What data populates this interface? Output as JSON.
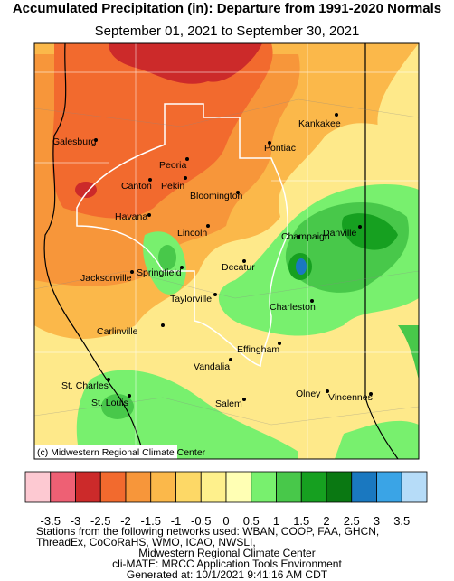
{
  "header": {
    "title": "Accumulated Precipitation (in): Departure from 1991-2020 Normals",
    "subtitle": "September 01, 2021 to September 30, 2021"
  },
  "map": {
    "cities": [
      "Kankakee",
      "Galesburg",
      "Pontiac",
      "Peoria",
      "Canton",
      "Pekin",
      "Bloomington",
      "Havana",
      "Lincoln",
      "Champaign",
      "Danville",
      "Decatur",
      "Jacksonville",
      "Springfield",
      "Taylorville",
      "Charleston",
      "Carlinville",
      "Effingham",
      "Vandalia",
      "St. Charles",
      "St. Louis",
      "Olney",
      "Vincennes",
      "Salem"
    ],
    "credit": "(c) Midwestern Regional Climate Center"
  },
  "legend": {
    "colors": [
      "#fdc9d2",
      "#ee6074",
      "#cc2a2a",
      "#f26a2e",
      "#f7963a",
      "#fbb84a",
      "#fdd866",
      "#fef08c",
      "#ffffb4",
      "#78f06e",
      "#48c84a",
      "#16a020",
      "#0a7812",
      "#1a78c0",
      "#3aa4e6",
      "#b6dcf8"
    ],
    "ticks": [
      -3.5,
      -3,
      -2.5,
      -2,
      -1.5,
      -1,
      -0.5,
      0,
      0.5,
      1,
      1.5,
      2,
      2.5,
      3,
      3.5
    ]
  },
  "footer": {
    "lines": [
      "Stations from the following networks used: WBAN, COOP, FAA, GHCN,",
      "ThreadEx, CoCoRaHS, WMO, ICAO, NWSLI,",
      "Midwestern Regional Climate Center",
      "cli-MATE: MRCC Application Tools Environment",
      "Generated at: 10/1/2021 9:41:16 AM CDT"
    ]
  }
}
